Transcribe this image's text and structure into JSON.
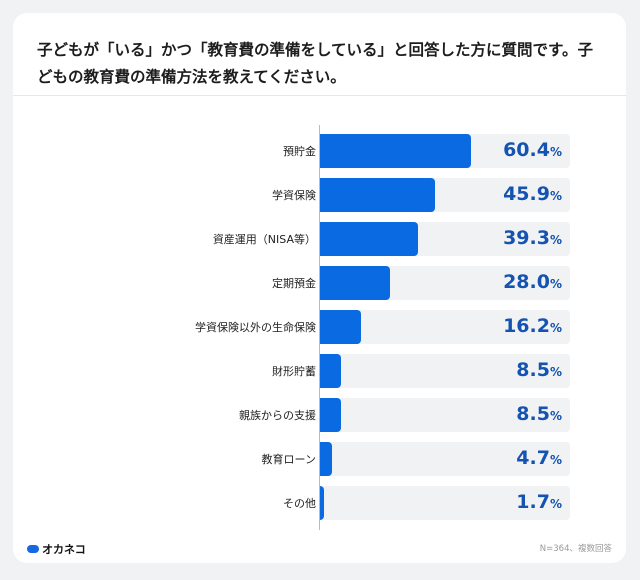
{
  "title": "子どもが「いる」かつ「教育費の準備をしている」と回答した方に質問です。子どもの教育費の準備方法を教えてください。",
  "brand": "オカネコ",
  "note": "N=364、複数回答",
  "colors": {
    "bar": "#0a6ae2",
    "track": "#f1f2f4",
    "value_text": "#1553b0"
  },
  "chart_data": {
    "type": "bar",
    "orientation": "horizontal",
    "categories": [
      "預貯金",
      "学資保険",
      "資産運用（NISA等）",
      "定期預金",
      "学資保険以外の生命保険",
      "財形貯蓄",
      "親族からの支援",
      "教育ローン",
      "その他"
    ],
    "values": [
      60.4,
      45.9,
      39.3,
      28.0,
      16.2,
      8.5,
      8.5,
      4.7,
      1.7
    ],
    "value_labels": [
      "60.4",
      "45.9",
      "39.3",
      "28.0",
      "16.2",
      "8.5",
      "8.5",
      "4.7",
      "1.7"
    ],
    "unit": "%",
    "xlim": [
      0,
      100
    ]
  }
}
